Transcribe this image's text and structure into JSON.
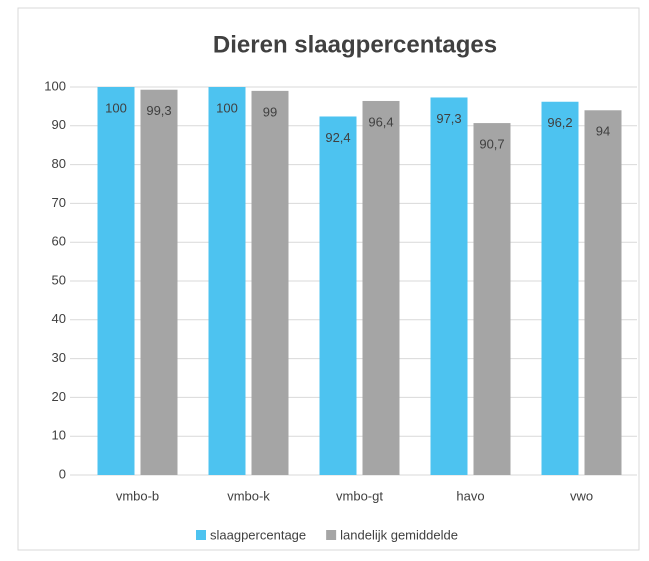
{
  "chart_data": {
    "type": "bar",
    "title": "Dieren slaagpercentages",
    "categories": [
      "vmbo-b",
      "vmbo-k",
      "vmbo-gt",
      "havo",
      "vwo"
    ],
    "series": [
      {
        "name": "slaagpercentage",
        "color": "#4dc3f0",
        "values": [
          100,
          100,
          92.4,
          97.3,
          96.2
        ],
        "value_labels": [
          "100",
          "100",
          "92,4",
          "97,3",
          "96,2"
        ]
      },
      {
        "name": "landelijk gemiddelde",
        "color": "#a5a5a5",
        "values": [
          99.3,
          99,
          96.4,
          90.7,
          94
        ],
        "value_labels": [
          "99,3",
          "99",
          "96,4",
          "90,7",
          "94"
        ]
      }
    ],
    "ylim": [
      0,
      100
    ],
    "yticks": [
      0,
      10,
      20,
      30,
      40,
      50,
      60,
      70,
      80,
      90,
      100
    ],
    "grid": true,
    "legend": "bottom"
  }
}
